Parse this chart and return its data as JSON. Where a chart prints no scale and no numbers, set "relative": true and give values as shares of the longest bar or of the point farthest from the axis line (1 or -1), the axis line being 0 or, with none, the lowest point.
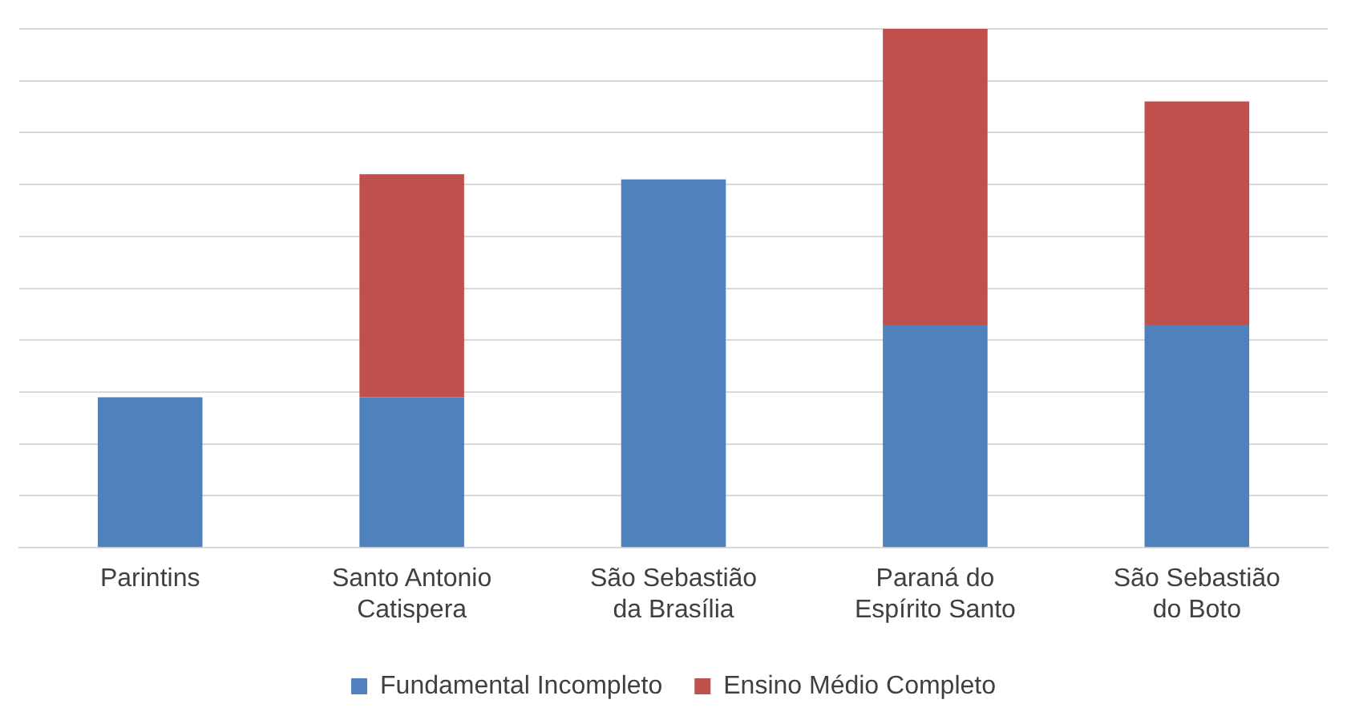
{
  "chart_data": {
    "type": "bar",
    "relative": true,
    "stacked": true,
    "grid": "y",
    "legend": "bottom",
    "categories": [
      "Parintins",
      "Santo Antonio Catispera",
      "São Sebastião da Brasília",
      "Paraná do Espírito Santo",
      "São Sebastião do Boto"
    ],
    "series": [
      {
        "name": "Fundamental Incompleto",
        "color": "#4f81bd",
        "values": [
          0.29,
          0.29,
          0.71,
          0.43,
          0.43
        ]
      },
      {
        "name": "Ensino Médio Completo",
        "color": "#c0504d",
        "values": [
          null,
          0.43,
          null,
          0.57,
          0.43
        ]
      }
    ]
  }
}
